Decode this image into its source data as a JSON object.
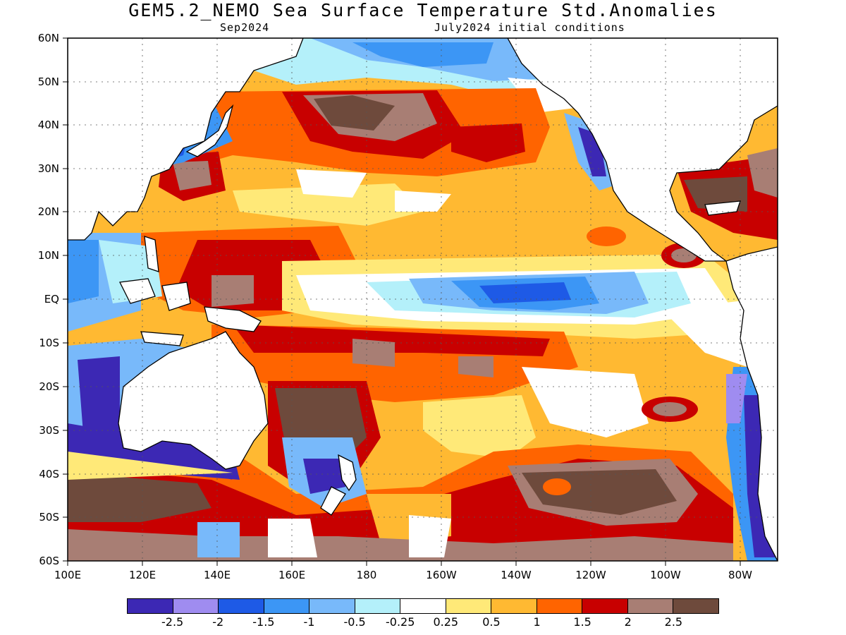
{
  "title": "GEM5.2_NEMO Sea Surface Temperature Std.Anomalies",
  "subtitle_left": "Sep2024",
  "subtitle_right": "July2024 initial conditions",
  "map": {
    "region": "Pacific Ocean",
    "lat_range": [
      -60,
      60
    ],
    "lon_range_east": [
      100,
      290
    ],
    "lat_ticks": [
      "60N",
      "50N",
      "40N",
      "30N",
      "20N",
      "10N",
      "EQ",
      "10S",
      "20S",
      "30S",
      "40S",
      "50S",
      "60S"
    ],
    "lon_ticks": [
      "100E",
      "120E",
      "140E",
      "160E",
      "180",
      "160W",
      "140W",
      "120W",
      "100W",
      "80W"
    ],
    "grid": true,
    "notable_features": {
      "equatorial_cold_tongue": "negative anomalies (-0.5 to -1.5) along equator 170W–100W",
      "north_pacific": "strong positive anomalies (1.5 to >2.5) 30N–45N",
      "south_pacific": "strong positive anomalies (>2.5) 40S–55S",
      "australia_west_coast": "strong negative anomalies (< -2.5)",
      "south_america_west_coast": "strong negative anomalies (< -2.5)"
    }
  },
  "legend": {
    "colors": [
      "#3c28b4",
      "#9f8cf0",
      "#1e5ae6",
      "#3c96f5",
      "#78b9fa",
      "#b4f0fa",
      "#ffffff",
      "#ffe978",
      "#ffb932",
      "#ff6400",
      "#c80000",
      "#a87e74",
      "#6e4a3c"
    ],
    "labels": [
      "-2.5",
      "-2",
      "-1.5",
      "-1",
      "-0.5",
      "-0.25",
      "0.25",
      "0.5",
      "1",
      "1.5",
      "2",
      "2.5"
    ]
  }
}
